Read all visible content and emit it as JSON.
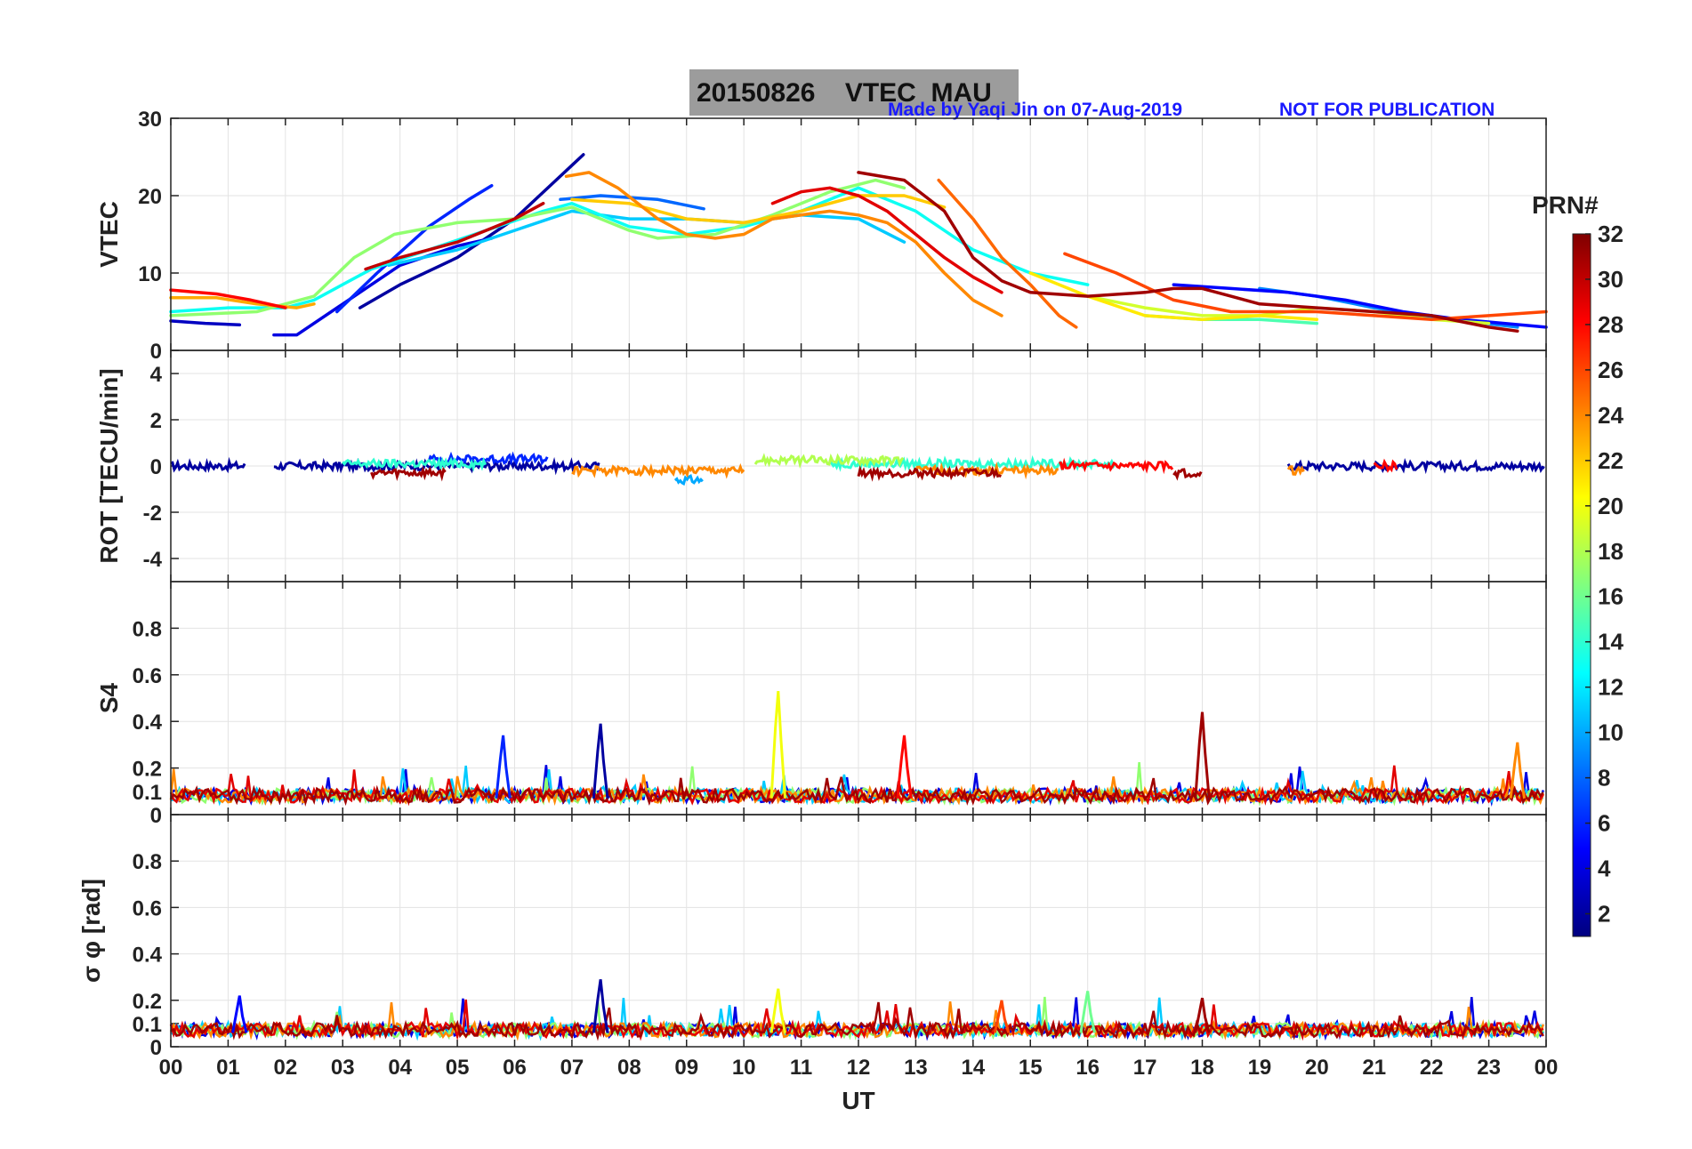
{
  "header": {
    "title": "20150826    VTEC  MAU",
    "credit": "Made by Yaqi Jin on 07-Aug-2019",
    "notice": "NOT FOR PUBLICATION"
  },
  "chart_data": [
    {
      "type": "line",
      "panel": "vtec",
      "ylabel": "VTEC",
      "ylim": [
        0,
        30
      ],
      "yticks": [
        0,
        10,
        20,
        30
      ],
      "x_ticks": [
        "00",
        "01",
        "02",
        "03",
        "04",
        "05",
        "06",
        "07",
        "08",
        "09",
        "10",
        "11",
        "12",
        "13",
        "14",
        "15",
        "16",
        "17",
        "18",
        "19",
        "20",
        "21",
        "22",
        "23",
        "00"
      ],
      "grid": true,
      "series": [
        {
          "prn": 2,
          "points": [
            [
              3.3,
              5.5
            ],
            [
              4.0,
              8.5
            ],
            [
              5.0,
              12.0
            ],
            [
              6.0,
              17.0
            ],
            [
              7.2,
              25.3
            ]
          ]
        },
        {
          "prn": 4,
          "points": [
            [
              1.8,
              2.0
            ],
            [
              2.2,
              2.0
            ],
            [
              3.0,
              6.0
            ],
            [
              4.0,
              11.0
            ],
            [
              5.0,
              13.5
            ],
            [
              5.6,
              14.5
            ]
          ]
        },
        {
          "prn": 6,
          "points": [
            [
              2.9,
              5.0
            ],
            [
              3.6,
              10.0
            ],
            [
              4.5,
              16.0
            ],
            [
              5.2,
              19.5
            ],
            [
              5.6,
              21.3
            ]
          ]
        },
        {
          "prn": 3,
          "points": [
            [
              0.0,
              3.8
            ],
            [
              0.6,
              3.5
            ],
            [
              1.2,
              3.3
            ]
          ]
        },
        {
          "prn": 8,
          "points": [
            [
              6.8,
              19.5
            ],
            [
              7.5,
              20.0
            ],
            [
              8.5,
              19.5
            ],
            [
              9.3,
              18.3
            ]
          ]
        },
        {
          "prn": 9,
          "points": [
            [
              19.0,
              8.0
            ],
            [
              20.0,
              7.0
            ],
            [
              21.0,
              5.5
            ],
            [
              22.0,
              4.3
            ],
            [
              23.5,
              3.0
            ]
          ]
        },
        {
          "prn": 5,
          "points": [
            [
              17.5,
              8.5
            ],
            [
              18.5,
              8.0
            ],
            [
              19.5,
              7.5
            ],
            [
              20.5,
              6.5
            ],
            [
              21.5,
              5.0
            ],
            [
              22.5,
              4.0
            ],
            [
              24.0,
              3.0
            ]
          ]
        },
        {
          "prn": 11,
          "points": [
            [
              3.8,
              11.0
            ],
            [
              5.0,
              13.0
            ],
            [
              6.0,
              15.5
            ],
            [
              7.0,
              18.0
            ],
            [
              8.0,
              17.0
            ],
            [
              9.0,
              17.0
            ],
            [
              10.0,
              16.5
            ],
            [
              11.0,
              17.5
            ],
            [
              12.0,
              17.0
            ],
            [
              12.8,
              14.0
            ]
          ]
        },
        {
          "prn": 13,
          "points": [
            [
              0.0,
              5.0
            ],
            [
              1.0,
              5.5
            ],
            [
              2.0,
              5.5
            ],
            [
              2.5,
              6.5
            ],
            [
              3.5,
              10.5
            ],
            [
              4.5,
              13.0
            ],
            [
              5.5,
              15.5
            ],
            [
              6.5,
              18.0
            ],
            [
              7.0,
              19.0
            ],
            [
              8.0,
              16.0
            ],
            [
              9.0,
              15.0
            ],
            [
              10.0,
              16.0
            ],
            [
              11.0,
              18.0
            ],
            [
              12.0,
              21.0
            ],
            [
              13.0,
              18.0
            ],
            [
              14.0,
              13.0
            ],
            [
              15.0,
              10.0
            ],
            [
              16.0,
              8.5
            ]
          ]
        },
        {
          "prn": 15,
          "points": [
            [
              17.0,
              4.5
            ],
            [
              18.0,
              4.0
            ],
            [
              19.0,
              4.0
            ],
            [
              20.0,
              3.5
            ]
          ]
        },
        {
          "prn": 17,
          "points": [
            [
              0.0,
              4.5
            ],
            [
              1.5,
              5.0
            ],
            [
              2.5,
              7.0
            ],
            [
              3.2,
              12.0
            ],
            [
              3.9,
              15.0
            ],
            [
              5.0,
              16.5
            ],
            [
              6.0,
              17.0
            ],
            [
              7.0,
              18.5
            ],
            [
              8.0,
              15.5
            ],
            [
              8.5,
              14.5
            ],
            [
              9.5,
              15.0
            ],
            [
              10.5,
              17.5
            ],
            [
              11.5,
              20.5
            ],
            [
              12.3,
              22.0
            ],
            [
              12.8,
              21.0
            ]
          ]
        },
        {
          "prn": 19,
          "points": [
            [
              16.0,
              7.0
            ],
            [
              17.0,
              5.5
            ],
            [
              18.0,
              4.5
            ],
            [
              19.0,
              4.5
            ],
            [
              20.0,
              5.5
            ],
            [
              21.0,
              5.0
            ],
            [
              22.0,
              4.0
            ],
            [
              23.0,
              3.5
            ]
          ]
        },
        {
          "prn": 21,
          "points": [
            [
              15.0,
              10.0
            ],
            [
              16.0,
              7.0
            ],
            [
              17.0,
              4.5
            ],
            [
              18.0,
              4.0
            ],
            [
              19.0,
              4.5
            ],
            [
              20.0,
              4.0
            ]
          ]
        },
        {
          "prn": 22,
          "points": [
            [
              7.0,
              19.5
            ],
            [
              8.0,
              19.0
            ],
            [
              9.0,
              17.0
            ],
            [
              10.0,
              16.5
            ],
            [
              11.0,
              18.0
            ],
            [
              12.0,
              20.0
            ],
            [
              12.8,
              20.0
            ],
            [
              13.5,
              18.5
            ]
          ]
        },
        {
          "prn": 23,
          "points": [
            [
              0.0,
              6.8
            ],
            [
              0.8,
              6.8
            ],
            [
              1.5,
              6.0
            ],
            [
              2.2,
              5.5
            ],
            [
              2.5,
              6.0
            ]
          ]
        },
        {
          "prn": 24,
          "points": [
            [
              6.9,
              22.5
            ],
            [
              7.3,
              23.0
            ],
            [
              7.8,
              21.0
            ],
            [
              8.5,
              17.0
            ],
            [
              9.0,
              15.0
            ],
            [
              9.5,
              14.5
            ],
            [
              10.0,
              15.0
            ],
            [
              10.5,
              17.0
            ],
            [
              11.5,
              18.0
            ],
            [
              12.0,
              17.5
            ],
            [
              12.5,
              16.5
            ],
            [
              13.0,
              14.0
            ],
            [
              13.5,
              10.0
            ],
            [
              14.0,
              6.5
            ],
            [
              14.5,
              4.5
            ]
          ]
        },
        {
          "prn": 25,
          "points": [
            [
              13.4,
              22.0
            ],
            [
              14.0,
              17.0
            ],
            [
              14.5,
              12.0
            ],
            [
              15.0,
              8.5
            ],
            [
              15.5,
              4.5
            ],
            [
              15.8,
              3.0
            ]
          ]
        },
        {
          "prn": 26,
          "points": [
            [
              15.6,
              12.5
            ],
            [
              16.5,
              10.0
            ],
            [
              17.5,
              6.5
            ],
            [
              18.5,
              5.0
            ],
            [
              20.0,
              5.0
            ],
            [
              21.0,
              4.5
            ],
            [
              22.0,
              4.0
            ],
            [
              23.0,
              4.5
            ],
            [
              24.0,
              5.0
            ]
          ]
        },
        {
          "prn": 28,
          "points": [
            [
              0.0,
              7.8
            ],
            [
              0.8,
              7.3
            ],
            [
              1.4,
              6.5
            ],
            [
              2.0,
              5.5
            ]
          ]
        },
        {
          "prn": 29,
          "points": [
            [
              10.5,
              19.0
            ],
            [
              11.0,
              20.5
            ],
            [
              11.5,
              21.0
            ],
            [
              12.0,
              20.0
            ],
            [
              12.5,
              18.0
            ],
            [
              13.5,
              12.0
            ],
            [
              14.0,
              9.5
            ],
            [
              14.5,
              7.5
            ]
          ]
        },
        {
          "prn": 30,
          "points": [
            [
              3.4,
              10.5
            ],
            [
              4.0,
              12.0
            ],
            [
              5.0,
              14.0
            ],
            [
              6.0,
              17.0
            ],
            [
              6.5,
              19.0
            ]
          ]
        },
        {
          "prn": 31,
          "points": [
            [
              12.0,
              23.0
            ],
            [
              12.8,
              22.0
            ],
            [
              13.5,
              18.0
            ],
            [
              14.0,
              12.0
            ],
            [
              14.5,
              9.0
            ],
            [
              15.0,
              7.5
            ],
            [
              16.0,
              7.0
            ],
            [
              17.0,
              7.5
            ],
            [
              17.5,
              8.0
            ],
            [
              18.0,
              8.0
            ],
            [
              18.5,
              7.0
            ],
            [
              19.0,
              6.0
            ],
            [
              20.0,
              5.5
            ],
            [
              21.0,
              5.0
            ],
            [
              22.0,
              4.5
            ],
            [
              23.0,
              3.0
            ],
            [
              23.5,
              2.5
            ]
          ]
        }
      ]
    },
    {
      "type": "line",
      "panel": "rot",
      "ylabel": "ROT [TECU/min]",
      "ylim": [
        -5,
        5
      ],
      "yticks": [
        -4,
        -2,
        0,
        2,
        4
      ],
      "grid": true,
      "series": [
        {
          "prn": 2,
          "segments": [
            [
              0.0,
              1.3
            ],
            [
              1.8,
              7.5
            ],
            [
              19.5,
              24.0
            ]
          ],
          "level": 0.0
        },
        {
          "prn": 6,
          "segments": [
            [
              4.5,
              6.6
            ]
          ],
          "level": 0.3
        },
        {
          "prn": 10,
          "segments": [
            [
              8.8,
              9.3
            ]
          ],
          "level": -0.6
        },
        {
          "prn": 14,
          "segments": [
            [
              3.0,
              5.5
            ],
            [
              11.5,
              16.5
            ]
          ],
          "level": 0.1
        },
        {
          "prn": 18,
          "segments": [
            [
              10.2,
              12.8
            ]
          ],
          "level": 0.25
        },
        {
          "prn": 24,
          "segments": [
            [
              7.0,
              10.0
            ],
            [
              13.0,
              15.5
            ],
            [
              19.5,
              19.8
            ]
          ],
          "level": -0.2
        },
        {
          "prn": 31,
          "segments": [
            [
              3.5,
              4.8
            ],
            [
              12.0,
              14.5
            ],
            [
              17.5,
              18.0
            ]
          ],
          "level": -0.3
        },
        {
          "prn": 28,
          "segments": [
            [
              15.5,
              17.5
            ],
            [
              21.0,
              21.4
            ]
          ],
          "level": 0.0
        }
      ]
    },
    {
      "type": "line",
      "panel": "s4",
      "ylabel": "S4",
      "ylim": [
        0,
        1.0
      ],
      "yticks": [
        0,
        0.1,
        0.2,
        0.4,
        0.6,
        0.8
      ],
      "grid": true,
      "spikes": [
        {
          "prn": 2,
          "x": 7.5,
          "y": 0.39
        },
        {
          "prn": 20,
          "x": 10.6,
          "y": 0.53
        },
        {
          "prn": 31,
          "x": 18.0,
          "y": 0.44
        },
        {
          "prn": 28,
          "x": 12.8,
          "y": 0.34
        },
        {
          "prn": 6,
          "x": 5.8,
          "y": 0.34
        },
        {
          "prn": 24,
          "x": 23.5,
          "y": 0.31
        }
      ],
      "baseline": 0.07
    },
    {
      "type": "line",
      "panel": "sigma_phi",
      "ylabel": "σ φ [rad]",
      "ylim": [
        0,
        1.0
      ],
      "yticks": [
        0,
        0.1,
        0.2,
        0.4,
        0.6,
        0.8
      ],
      "xlabel": "UT",
      "grid": true,
      "spikes": [
        {
          "prn": 2,
          "x": 7.5,
          "y": 0.29
        },
        {
          "prn": 5,
          "x": 1.2,
          "y": 0.22
        },
        {
          "prn": 20,
          "x": 10.6,
          "y": 0.25
        },
        {
          "prn": 26,
          "x": 14.5,
          "y": 0.2
        },
        {
          "prn": 31,
          "x": 18.0,
          "y": 0.21
        },
        {
          "prn": 16,
          "x": 16.0,
          "y": 0.24
        }
      ],
      "baseline": 0.06
    }
  ],
  "colorbar": {
    "title": "PRN#",
    "ticks": [
      2,
      4,
      6,
      8,
      10,
      12,
      14,
      16,
      18,
      20,
      22,
      24,
      26,
      28,
      30,
      32
    ],
    "range": [
      1,
      32
    ],
    "colormap": "jet"
  }
}
